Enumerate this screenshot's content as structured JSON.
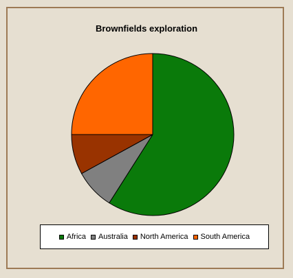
{
  "chart_data": {
    "type": "pie",
    "title": "Brownfields exploration",
    "categories": [
      "Africa",
      "Australia",
      "North America",
      "South America"
    ],
    "values": [
      59,
      8,
      8,
      25
    ],
    "colors": [
      "#0a7a0a",
      "#808080",
      "#993300",
      "#ff6600"
    ],
    "legend_position": "bottom"
  }
}
